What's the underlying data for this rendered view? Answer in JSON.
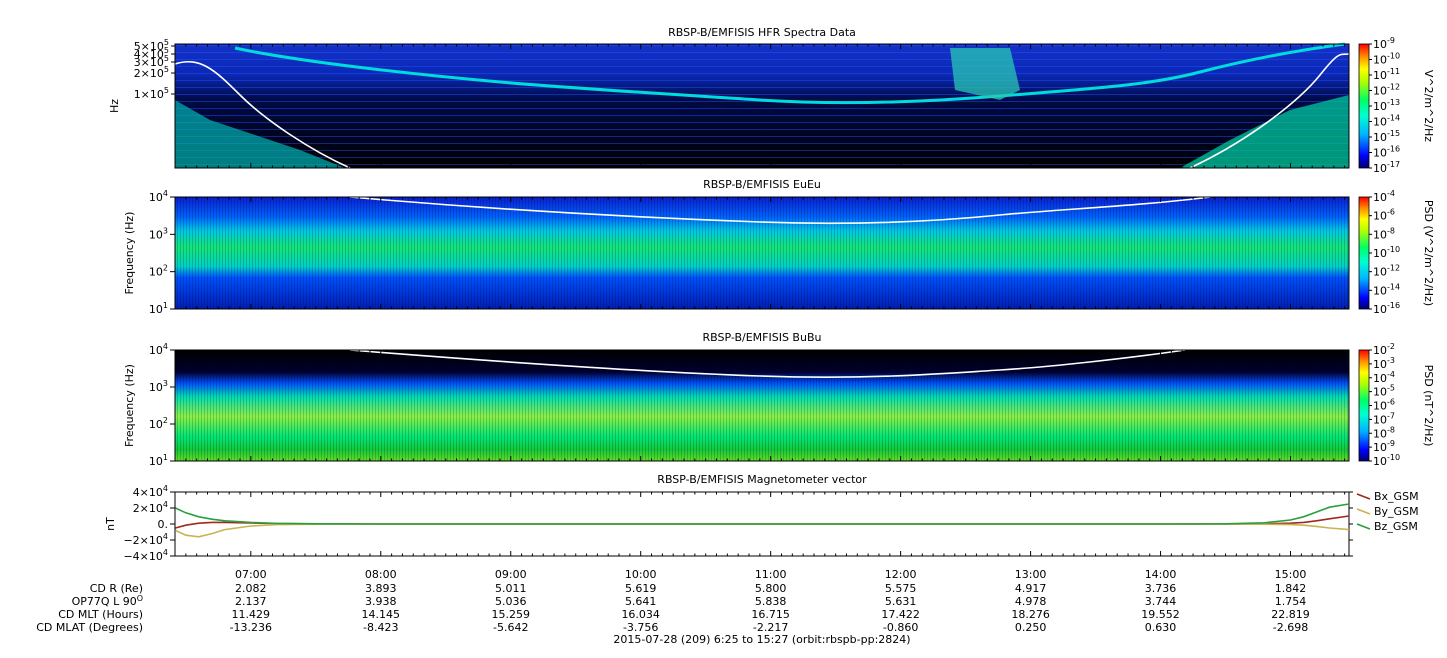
{
  "footer_title": "2015-07-28 (209) 6:25 to 15:27 (orbit:rbspb-pp:2824)",
  "time_ticks": [
    "07:00",
    "08:00",
    "09:00",
    "10:00",
    "11:00",
    "12:00",
    "13:00",
    "14:00",
    "15:00"
  ],
  "ephemeris": {
    "rows": [
      {
        "label": "CD R (Re)",
        "values": [
          "2.082",
          "3.893",
          "5.011",
          "5.619",
          "5.800",
          "5.575",
          "4.917",
          "3.736",
          "1.842"
        ]
      },
      {
        "label": "OP77Q L 90",
        "label_sup": "O",
        "values": [
          "2.137",
          "3.938",
          "5.036",
          "5.641",
          "5.838",
          "5.631",
          "4.978",
          "3.744",
          "1.754"
        ]
      },
      {
        "label": "CD MLT (Hours)",
        "values": [
          "11.429",
          "14.145",
          "15.259",
          "16.034",
          "16.715",
          "17.422",
          "18.276",
          "19.552",
          "22.819"
        ]
      },
      {
        "label": "CD MLAT (Degrees)",
        "values": [
          "-13.236",
          "-8.423",
          "-5.642",
          "-3.756",
          "-2.217",
          "-0.860",
          "0.250",
          "0.630",
          "-2.698"
        ]
      }
    ]
  },
  "chart_data": [
    {
      "type": "heatmap",
      "title": "RBSP-B/EMFISIS  HFR Spectra Data",
      "ylabel": "Hz",
      "y_scale": "log",
      "y_ticks": [
        {
          "base": "1",
          "exp": "5"
        },
        {
          "base": "2",
          "exp": "5"
        },
        {
          "base": "3",
          "exp": "5"
        },
        {
          "base": "4",
          "exp": "5"
        },
        {
          "base": "5",
          "exp": "5"
        }
      ],
      "colorbar": {
        "label": "V^2/m^2/Hz",
        "scale": "log",
        "ticks": [
          "-9",
          "-10",
          "-11",
          "-12",
          "-13",
          "-14",
          "-15",
          "-16",
          "-17"
        ]
      },
      "overlay": "white line (e.g. plasma frequency trace)"
    },
    {
      "type": "heatmap",
      "title": "RBSP-B/EMFISIS  EuEu",
      "ylabel": "Frequency (Hz)",
      "y_scale": "log",
      "ylim": [
        10,
        10000
      ],
      "y_ticks": [
        "4",
        "3",
        "2",
        "1"
      ],
      "colorbar": {
        "label": "PSD (V^2/m^2/Hz)",
        "scale": "log",
        "ticks": [
          "-4",
          "-6",
          "-8",
          "-10",
          "-12",
          "-14",
          "-16"
        ]
      }
    },
    {
      "type": "heatmap",
      "title": "RBSP-B/EMFISIS  BuBu",
      "ylabel": "Frequency (Hz)",
      "y_scale": "log",
      "ylim": [
        10,
        10000
      ],
      "y_ticks": [
        "4",
        "3",
        "2",
        "1"
      ],
      "colorbar": {
        "label": "PSD (nT^2/Hz)",
        "scale": "log",
        "ticks": [
          "-2",
          "-3",
          "-4",
          "-5",
          "-6",
          "-7",
          "-8",
          "-9",
          "-10"
        ]
      }
    },
    {
      "type": "line",
      "title": "RBSP-B/EMFISIS  Magnetometer vector",
      "ylabel": "nT",
      "ylim": [
        -40000,
        40000
      ],
      "y_ticks": [
        {
          "sign": "",
          "base": "4×10",
          "exp": "4"
        },
        {
          "sign": "",
          "base": "2×10",
          "exp": "4"
        },
        {
          "sign": "",
          "base": "0.",
          "exp": ""
        },
        {
          "sign": "−",
          "base": "2×10",
          "exp": "4"
        },
        {
          "sign": "−",
          "base": "4×10",
          "exp": "4"
        }
      ],
      "x_hours": [
        6.42,
        6.5,
        6.6,
        6.7,
        6.8,
        7.0,
        7.2,
        7.5,
        8.0,
        9.0,
        10.0,
        11.0,
        12.0,
        13.0,
        14.0,
        14.5,
        14.8,
        15.0,
        15.1,
        15.2,
        15.3,
        15.45
      ],
      "series": [
        {
          "name": "Bx_GSM",
          "color": "#a0281e",
          "values": [
            -5000,
            -1500,
            1000,
            2000,
            2000,
            1200,
            600,
            200,
            0,
            0,
            0,
            0,
            0,
            0,
            0,
            0,
            300,
            1000,
            2000,
            4000,
            6500,
            10000
          ]
        },
        {
          "name": "By_GSM",
          "color": "#c8b450",
          "values": [
            -8000,
            -14000,
            -16000,
            -12000,
            -7000,
            -2500,
            -800,
            -200,
            0,
            0,
            0,
            0,
            0,
            0,
            0,
            0,
            -200,
            -800,
            -1500,
            -3000,
            -5000,
            -7000
          ]
        },
        {
          "name": "Bz_GSM",
          "color": "#28a03c",
          "values": [
            20000,
            14000,
            9000,
            6000,
            4000,
            2000,
            800,
            200,
            0,
            0,
            0,
            0,
            0,
            0,
            0,
            200,
            1500,
            5000,
            9000,
            15000,
            21000,
            25000
          ]
        }
      ]
    }
  ]
}
